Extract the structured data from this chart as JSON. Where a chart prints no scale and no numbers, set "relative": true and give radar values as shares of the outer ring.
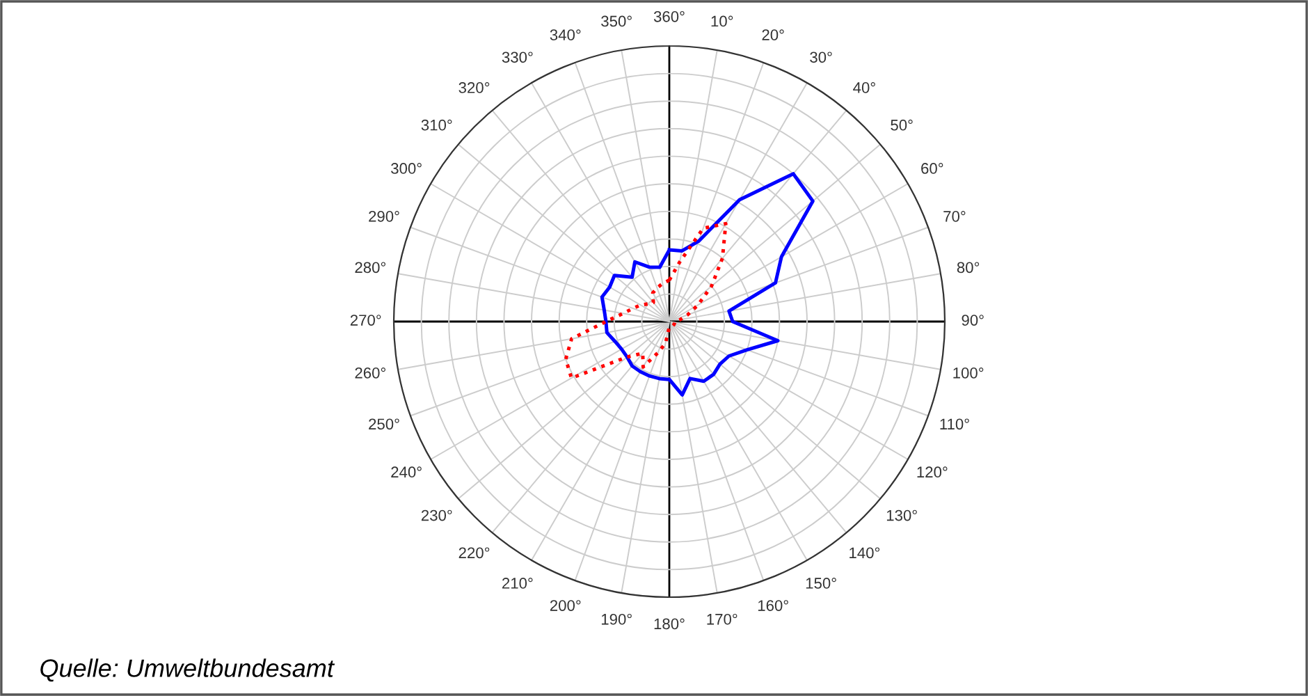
{
  "chart_data": {
    "type": "radar",
    "relative": true,
    "grid": true,
    "marker": "none",
    "categories": [
      "360°",
      "10°",
      "20°",
      "30°",
      "40°",
      "50°",
      "60°",
      "70°",
      "80°",
      "90°",
      "100°",
      "110°",
      "120°",
      "130°",
      "140°",
      "150°",
      "160°",
      "170°",
      "180°",
      "190°",
      "200°",
      "210°",
      "220°",
      "230°",
      "240°",
      "250°",
      "260°",
      "270°",
      "280°",
      "290°",
      "300°",
      "310°",
      "320°",
      "330°",
      "340°",
      "350°"
    ],
    "series": [
      {
        "color": "#0000ff",
        "line_style": "solid",
        "values": [
          0.26,
          0.26,
          0.31,
          0.51,
          0.7,
          0.68,
          0.47,
          0.41,
          0.22,
          0.23,
          0.4,
          0.3,
          0.25,
          0.24,
          0.25,
          0.25,
          0.22,
          0.27,
          0.21,
          0.21,
          0.21,
          0.21,
          0.21,
          0.2,
          0.2,
          0.21,
          0.23,
          0.23,
          0.24,
          0.26,
          0.25,
          0.26,
          0.21,
          0.25,
          0.21,
          0.2
        ]
      },
      {
        "color": "#ff0000",
        "line_style": "dotted",
        "values": [
          0.15,
          0.22,
          0.36,
          0.41,
          0.3,
          0.2,
          0.12,
          0.07,
          0.04,
          0.02,
          0.02,
          0.02,
          0.02,
          0.02,
          0.02,
          0.02,
          0.02,
          0.02,
          0.02,
          0.08,
          0.12,
          0.19,
          0.15,
          0.2,
          0.41,
          0.4,
          0.36,
          0.23,
          0.17,
          0.14,
          0.12,
          0.1,
          0.09,
          0.12,
          0.13,
          0.14
        ]
      }
    ],
    "annotations": [
      "Quelle: Umweltbundesamt"
    ]
  }
}
